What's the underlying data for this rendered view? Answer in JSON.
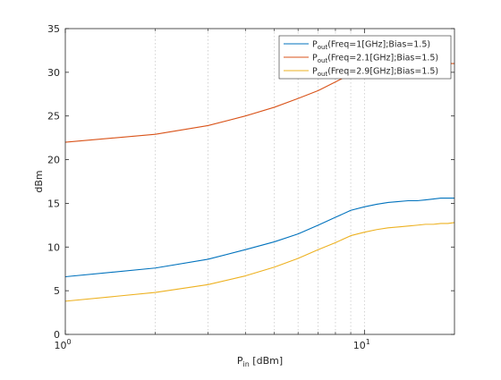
{
  "chart_data": {
    "type": "line",
    "title": "",
    "xlabel": {
      "main": "P",
      "sub": "in",
      "rest": " [dBm]"
    },
    "ylabel": "dBm",
    "xscale": "log",
    "xlim": [
      1,
      20
    ],
    "ylim": [
      0,
      35
    ],
    "x_major_ticks": [
      {
        "value": 1,
        "base": "10",
        "exp": "0"
      },
      {
        "value": 10,
        "base": "10",
        "exp": "1"
      }
    ],
    "y_ticks": [
      0,
      5,
      10,
      15,
      20,
      25,
      30,
      35
    ],
    "grid": true,
    "legend_placement": "top-right",
    "x": [
      1,
      2,
      3,
      4,
      5,
      6,
      7,
      8,
      9,
      10,
      11,
      12,
      13,
      14,
      15,
      16,
      17,
      18,
      19,
      20
    ],
    "series": [
      {
        "name": {
          "main": "P",
          "sub": "out",
          "rest": "(Freq=1[GHz];Bias=1.5)"
        },
        "color": "#0072bd",
        "values": [
          6.6,
          7.6,
          8.6,
          9.7,
          10.6,
          11.5,
          12.5,
          13.4,
          14.2,
          14.6,
          14.9,
          15.1,
          15.2,
          15.3,
          15.3,
          15.4,
          15.5,
          15.6,
          15.6,
          15.6
        ]
      },
      {
        "name": {
          "main": "P",
          "sub": "out",
          "rest": "(Freq=2.1[GHz];Bias=1.5)"
        },
        "color": "#d95319",
        "values": [
          22.0,
          22.9,
          23.9,
          25.0,
          26.0,
          27.0,
          27.9,
          28.9,
          29.8,
          30.3,
          30.6,
          30.8,
          30.9,
          30.9,
          31.0,
          31.0,
          31.0,
          31.0,
          31.0,
          31.0
        ]
      },
      {
        "name": {
          "main": "P",
          "sub": "out",
          "rest": "(Freq=2.9[GHz];Bias=1.5)"
        },
        "color": "#edb120",
        "values": [
          3.8,
          4.8,
          5.7,
          6.7,
          7.7,
          8.7,
          9.7,
          10.5,
          11.3,
          11.7,
          12.0,
          12.2,
          12.3,
          12.4,
          12.5,
          12.6,
          12.6,
          12.7,
          12.7,
          12.8
        ]
      }
    ]
  }
}
